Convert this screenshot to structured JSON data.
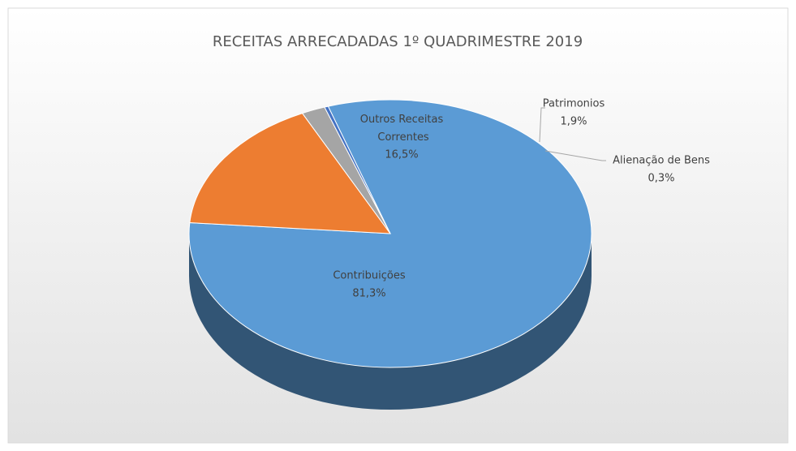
{
  "chart_data": {
    "type": "pie",
    "title": "RECEITAS ARRECADADAS 1º QUADRIMESTRE 2019",
    "categories": [
      "Contribuições",
      "Outros Receitas Correntes",
      "Patrimonios",
      "Alienação de Bens"
    ],
    "values": [
      81.3,
      16.5,
      1.9,
      0.3
    ],
    "value_labels": [
      "81,3%",
      "16,5%",
      "1,9%",
      "0,3%"
    ],
    "colors": [
      "#5b9bd5",
      "#ed7d31",
      "#a5a5a5",
      "#4472c4"
    ]
  }
}
